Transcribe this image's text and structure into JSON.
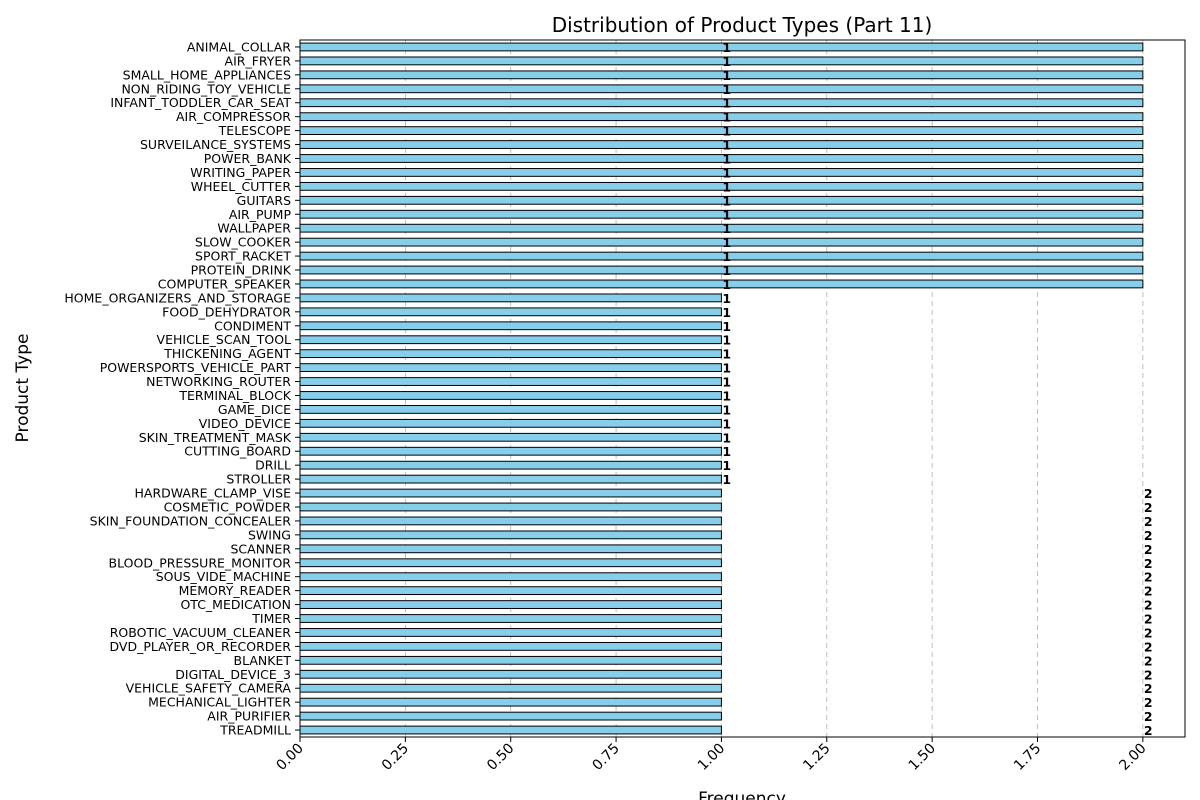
{
  "chart_data": {
    "type": "bar",
    "orientation": "horizontal",
    "title": "Distribution of Product Types (Part 11)",
    "xlabel": "Frequency",
    "ylabel": "Product Type",
    "xlim": [
      0,
      2.1
    ],
    "xticks": [
      0.0,
      0.25,
      0.5,
      0.75,
      1.0,
      1.25,
      1.5,
      1.75,
      2.0
    ],
    "xtick_labels": [
      "0.00",
      "0.25",
      "0.50",
      "0.75",
      "1.00",
      "1.25",
      "1.50",
      "1.75",
      "2.00"
    ],
    "grid": "x-dashed",
    "bar_color": "#87ceeb",
    "edge_color": "#000000",
    "categories": [
      "ANIMAL_COLLAR",
      "AIR_FRYER",
      "SMALL_HOME_APPLIANCES",
      "NON_RIDING_TOY_VEHICLE",
      "INFANT_TODDLER_CAR_SEAT",
      "AIR_COMPRESSOR",
      "TELESCOPE",
      "SURVEILANCE_SYSTEMS",
      "POWER_BANK",
      "WRITING_PAPER",
      "WHEEL_CUTTER",
      "GUITARS",
      "AIR_PUMP",
      "WALLPAPER",
      "SLOW_COOKER",
      "SPORT_RACKET",
      "PROTEIN_DRINK",
      "COMPUTER_SPEAKER",
      "HOME_ORGANIZERS_AND_STORAGE",
      "FOOD_DEHYDRATOR",
      "CONDIMENT",
      "VEHICLE_SCAN_TOOL",
      "THICKENING_AGENT",
      "POWERSPORTS_VEHICLE_PART",
      "NETWORKING_ROUTER",
      "TERMINAL_BLOCK",
      "GAME_DICE",
      "VIDEO_DEVICE",
      "SKIN_TREATMENT_MASK",
      "CUTTING_BOARD",
      "DRILL",
      "STROLLER",
      "HARDWARE_CLAMP_VISE",
      "COSMETIC_POWDER",
      "SKIN_FOUNDATION_CONCEALER",
      "SWING",
      "SCANNER",
      "BLOOD_PRESSURE_MONITOR",
      "SOUS_VIDE_MACHINE",
      "MEMORY_READER",
      "OTC_MEDICATION",
      "TIMER",
      "ROBOTIC_VACUUM_CLEANER",
      "DVD_PLAYER_OR_RECORDER",
      "BLANKET",
      "DIGITAL_DEVICE_3",
      "VEHICLE_SAFETY_CAMERA",
      "MECHANICAL_LIGHTER",
      "AIR_PURIFIER",
      "TREADMILL"
    ],
    "bar_values": [
      2,
      2,
      2,
      2,
      2,
      2,
      2,
      2,
      2,
      2,
      2,
      2,
      2,
      2,
      2,
      2,
      2,
      2,
      1,
      1,
      1,
      1,
      1,
      1,
      1,
      1,
      1,
      1,
      1,
      1,
      1,
      1,
      1,
      1,
      1,
      1,
      1,
      1,
      1,
      1,
      1,
      1,
      1,
      1,
      1,
      1,
      1,
      1,
      1,
      1
    ],
    "data_labels": [
      "1",
      "1",
      "1",
      "1",
      "1",
      "1",
      "1",
      "1",
      "1",
      "1",
      "1",
      "1",
      "1",
      "1",
      "1",
      "1",
      "1",
      "1",
      "1",
      "1",
      "1",
      "1",
      "1",
      "1",
      "1",
      "1",
      "1",
      "1",
      "1",
      "1",
      "1",
      "1",
      "2",
      "2",
      "2",
      "2",
      "2",
      "2",
      "2",
      "2",
      "2",
      "2",
      "2",
      "2",
      "2",
      "2",
      "2",
      "2",
      "2",
      "2"
    ],
    "data_label_x": [
      1,
      1,
      1,
      1,
      1,
      1,
      1,
      1,
      1,
      1,
      1,
      1,
      1,
      1,
      1,
      1,
      1,
      1,
      1,
      1,
      1,
      1,
      1,
      1,
      1,
      1,
      1,
      1,
      1,
      1,
      1,
      1,
      2,
      2,
      2,
      2,
      2,
      2,
      2,
      2,
      2,
      2,
      2,
      2,
      2,
      2,
      2,
      2,
      2,
      2
    ]
  }
}
